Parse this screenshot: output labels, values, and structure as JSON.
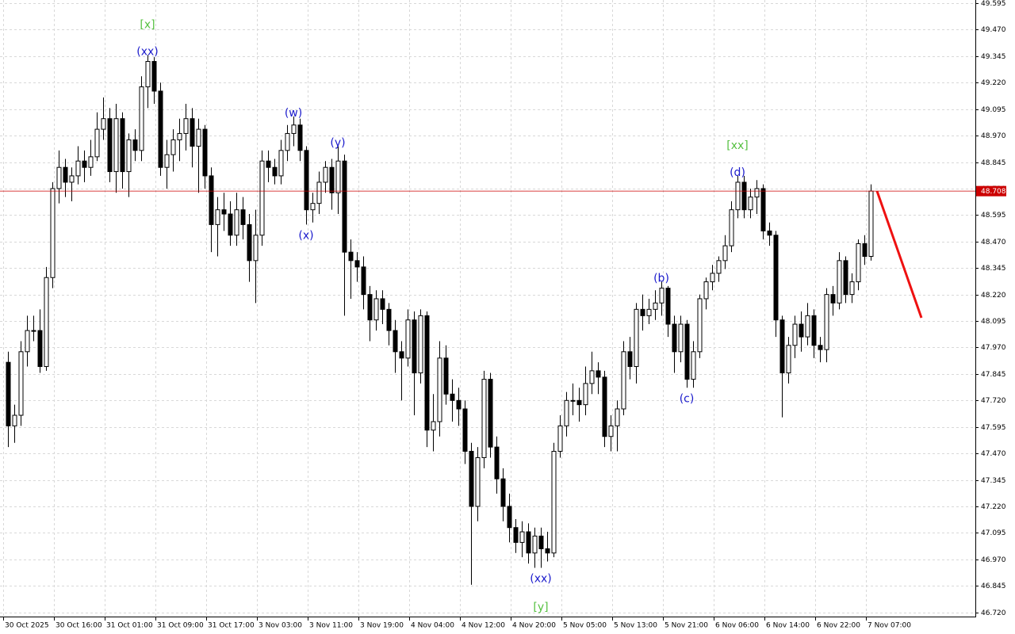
{
  "chart_data": {
    "type": "candlestick",
    "categories": [
      "30 Oct 2025",
      "30 Oct 16:00",
      "31 Oct 01:00",
      "31 Oct 09:00",
      "31 Oct 17:00",
      "3 Nov 03:00",
      "3 Nov 11:00",
      "3 Nov 19:00",
      "4 Nov 04:00",
      "4 Nov 12:00",
      "4 Nov 20:00",
      "5 Nov 05:00",
      "5 Nov 13:00",
      "5 Nov 21:00",
      "6 Nov 06:00",
      "6 Nov 14:00",
      "6 Nov 22:00",
      "7 Nov 07:00"
    ],
    "ohlc": [
      [
        47.9,
        47.95,
        47.5,
        47.6
      ],
      [
        47.6,
        47.7,
        47.52,
        47.65
      ],
      [
        47.65,
        48.0,
        47.6,
        47.95
      ],
      [
        47.95,
        48.12,
        47.88,
        48.05
      ],
      [
        48.05,
        48.12,
        48.0,
        48.05
      ],
      [
        48.05,
        48.15,
        47.85,
        47.88
      ],
      [
        47.88,
        48.35,
        47.86,
        48.3
      ],
      [
        48.3,
        48.75,
        48.25,
        48.72
      ],
      [
        48.72,
        48.9,
        48.65,
        48.82
      ],
      [
        48.82,
        48.86,
        48.68,
        48.75
      ],
      [
        48.75,
        48.82,
        48.66,
        48.78
      ],
      [
        48.78,
        48.92,
        48.74,
        48.85
      ],
      [
        48.85,
        48.9,
        48.75,
        48.82
      ],
      [
        48.82,
        48.95,
        48.78,
        48.87
      ],
      [
        48.87,
        49.08,
        48.85,
        49.0
      ],
      [
        49.0,
        49.15,
        48.95,
        49.05
      ],
      [
        49.05,
        49.1,
        48.75,
        48.8
      ],
      [
        48.8,
        49.12,
        48.7,
        49.05
      ],
      [
        49.05,
        49.08,
        48.72,
        48.8
      ],
      [
        48.8,
        48.98,
        48.68,
        48.95
      ],
      [
        48.95,
        49.0,
        48.85,
        48.9
      ],
      [
        48.9,
        49.25,
        48.85,
        49.2
      ],
      [
        49.2,
        49.35,
        49.1,
        49.32
      ],
      [
        49.32,
        49.34,
        49.12,
        49.18
      ],
      [
        49.18,
        49.22,
        48.78,
        48.82
      ],
      [
        48.82,
        48.95,
        48.72,
        48.88
      ],
      [
        48.88,
        49.0,
        48.8,
        48.95
      ],
      [
        48.95,
        49.05,
        48.85,
        48.98
      ],
      [
        48.98,
        49.12,
        48.9,
        49.05
      ],
      [
        49.05,
        49.1,
        48.82,
        48.92
      ],
      [
        48.92,
        49.05,
        48.7,
        49.0
      ],
      [
        49.0,
        49.02,
        48.72,
        48.78
      ],
      [
        48.78,
        48.82,
        48.42,
        48.55
      ],
      [
        48.55,
        48.68,
        48.4,
        48.62
      ],
      [
        48.62,
        48.7,
        48.52,
        48.6
      ],
      [
        48.6,
        48.66,
        48.45,
        48.5
      ],
      [
        48.5,
        48.7,
        48.45,
        48.62
      ],
      [
        48.62,
        48.68,
        48.48,
        48.55
      ],
      [
        48.55,
        48.6,
        48.28,
        48.38
      ],
      [
        48.38,
        48.62,
        48.18,
        48.5
      ],
      [
        48.5,
        48.9,
        48.45,
        48.85
      ],
      [
        48.85,
        48.9,
        48.75,
        48.82
      ],
      [
        48.82,
        48.86,
        48.74,
        48.78
      ],
      [
        48.78,
        48.95,
        48.74,
        48.9
      ],
      [
        48.9,
        49.02,
        48.85,
        48.98
      ],
      [
        48.98,
        49.06,
        48.92,
        49.02
      ],
      [
        49.02,
        49.05,
        48.85,
        48.9
      ],
      [
        48.9,
        48.92,
        48.55,
        48.62
      ],
      [
        48.62,
        48.7,
        48.56,
        48.65
      ],
      [
        48.65,
        48.8,
        48.6,
        48.75
      ],
      [
        48.75,
        48.85,
        48.7,
        48.82
      ],
      [
        48.82,
        48.86,
        48.62,
        48.7
      ],
      [
        48.7,
        48.92,
        48.6,
        48.85
      ],
      [
        48.85,
        48.88,
        48.12,
        48.42
      ],
      [
        48.42,
        48.48,
        48.2,
        48.38
      ],
      [
        48.38,
        48.42,
        48.28,
        48.35
      ],
      [
        48.35,
        48.4,
        48.15,
        48.22
      ],
      [
        48.22,
        48.26,
        48.0,
        48.1
      ],
      [
        48.1,
        48.24,
        48.05,
        48.2
      ],
      [
        48.2,
        48.24,
        48.08,
        48.15
      ],
      [
        48.15,
        48.18,
        47.98,
        48.05
      ],
      [
        48.05,
        48.1,
        47.85,
        47.95
      ],
      [
        47.95,
        48.0,
        47.72,
        47.92
      ],
      [
        47.92,
        48.15,
        47.88,
        48.1
      ],
      [
        48.1,
        48.14,
        47.65,
        47.85
      ],
      [
        47.85,
        48.15,
        47.8,
        48.12
      ],
      [
        48.12,
        48.14,
        47.5,
        47.58
      ],
      [
        47.58,
        47.75,
        47.48,
        47.62
      ],
      [
        47.62,
        48.0,
        47.55,
        47.92
      ],
      [
        47.92,
        47.98,
        47.7,
        47.75
      ],
      [
        47.75,
        47.82,
        47.62,
        47.72
      ],
      [
        47.72,
        47.78,
        47.6,
        47.68
      ],
      [
        47.68,
        47.72,
        47.42,
        47.48
      ],
      [
        47.48,
        47.52,
        46.85,
        47.22
      ],
      [
        47.22,
        47.5,
        47.15,
        47.45
      ],
      [
        47.45,
        47.86,
        47.4,
        47.82
      ],
      [
        47.82,
        47.85,
        47.45,
        47.5
      ],
      [
        47.5,
        47.55,
        47.28,
        47.35
      ],
      [
        47.35,
        47.4,
        47.15,
        47.22
      ],
      [
        47.22,
        47.28,
        47.05,
        47.12
      ],
      [
        47.12,
        47.16,
        47.0,
        47.05
      ],
      [
        47.05,
        47.15,
        46.98,
        47.1
      ],
      [
        47.1,
        47.14,
        46.95,
        47.0
      ],
      [
        47.0,
        47.12,
        46.93,
        47.08
      ],
      [
        47.08,
        47.12,
        46.93,
        47.02
      ],
      [
        47.02,
        47.1,
        46.96,
        47.0
      ],
      [
        47.0,
        47.52,
        46.98,
        47.48
      ],
      [
        47.48,
        47.65,
        47.45,
        47.6
      ],
      [
        47.6,
        47.76,
        47.55,
        47.72
      ],
      [
        47.72,
        47.8,
        47.65,
        47.72
      ],
      [
        47.72,
        47.78,
        47.62,
        47.7
      ],
      [
        47.7,
        47.88,
        47.65,
        47.8
      ],
      [
        47.8,
        47.95,
        47.75,
        47.86
      ],
      [
        47.86,
        47.9,
        47.75,
        47.83
      ],
      [
        47.83,
        47.86,
        47.5,
        47.55
      ],
      [
        47.55,
        47.65,
        47.48,
        47.6
      ],
      [
        47.6,
        47.72,
        47.48,
        47.68
      ],
      [
        47.68,
        48.0,
        47.65,
        47.95
      ],
      [
        47.95,
        48.02,
        47.82,
        47.88
      ],
      [
        47.88,
        48.18,
        47.8,
        48.15
      ],
      [
        48.15,
        48.22,
        48.05,
        48.12
      ],
      [
        48.12,
        48.2,
        48.08,
        48.15
      ],
      [
        48.15,
        48.24,
        48.1,
        48.18
      ],
      [
        48.18,
        48.28,
        48.12,
        48.25
      ],
      [
        48.25,
        48.26,
        48.02,
        48.08
      ],
      [
        48.08,
        48.12,
        47.85,
        47.95
      ],
      [
        47.95,
        48.12,
        47.9,
        48.08
      ],
      [
        48.08,
        48.1,
        47.78,
        47.82
      ],
      [
        47.82,
        48.0,
        47.78,
        47.95
      ],
      [
        47.95,
        48.22,
        47.92,
        48.2
      ],
      [
        48.2,
        48.3,
        48.15,
        48.28
      ],
      [
        48.28,
        48.36,
        48.24,
        48.32
      ],
      [
        48.32,
        48.4,
        48.28,
        48.38
      ],
      [
        48.38,
        48.5,
        48.34,
        48.45
      ],
      [
        48.45,
        48.66,
        48.42,
        48.62
      ],
      [
        48.62,
        48.78,
        48.58,
        48.75
      ],
      [
        48.75,
        48.78,
        48.58,
        48.62
      ],
      [
        48.62,
        48.72,
        48.58,
        48.68
      ],
      [
        48.68,
        48.76,
        48.6,
        48.72
      ],
      [
        48.72,
        48.74,
        48.48,
        48.52
      ],
      [
        48.52,
        48.56,
        48.45,
        48.5
      ],
      [
        48.5,
        48.52,
        48.02,
        48.1
      ],
      [
        48.1,
        48.12,
        47.64,
        47.85
      ],
      [
        47.85,
        48.02,
        47.8,
        47.98
      ],
      [
        47.98,
        48.12,
        47.92,
        48.08
      ],
      [
        48.08,
        48.14,
        47.95,
        48.02
      ],
      [
        48.02,
        48.18,
        47.98,
        48.12
      ],
      [
        48.12,
        48.15,
        47.92,
        47.98
      ],
      [
        47.98,
        48.02,
        47.9,
        47.96
      ],
      [
        47.96,
        48.25,
        47.9,
        48.22
      ],
      [
        48.22,
        48.26,
        48.12,
        48.18
      ],
      [
        48.18,
        48.42,
        48.15,
        48.38
      ],
      [
        48.38,
        48.4,
        48.18,
        48.22
      ],
      [
        48.22,
        48.32,
        48.18,
        48.28
      ],
      [
        48.28,
        48.48,
        48.24,
        48.46
      ],
      [
        48.46,
        48.5,
        48.36,
        48.4
      ],
      [
        48.4,
        48.74,
        48.38,
        48.708
      ]
    ],
    "ylim": [
      46.7,
      49.61
    ],
    "yticks": [
      49.595,
      {
        "value": 49.47,
        "label": "49.470"
      },
      49.345,
      {
        "value": 49.22,
        "label": "49.220"
      },
      49.095,
      {
        "value": 48.97,
        "label": "48.970"
      },
      48.845,
      {
        "value": 48.72,
        "label": "48.720"
      },
      48.595,
      {
        "value": 48.47,
        "label": "48.470"
      },
      48.345,
      {
        "value": 48.22,
        "label": "48.220"
      },
      48.095,
      {
        "value": 47.97,
        "label": "47.970"
      },
      47.845,
      {
        "value": 47.72,
        "label": "47.720"
      },
      47.595,
      {
        "value": 47.47,
        "label": "47.470"
      },
      47.345,
      {
        "value": 47.22,
        "label": "47.220"
      },
      47.095,
      {
        "value": 46.97,
        "label": "46.970"
      },
      46.845,
      {
        "value": 46.72,
        "label": "46.720"
      }
    ],
    "grid": true,
    "last_price": 48.708,
    "last_price_color": "#cc0000",
    "forecast": {
      "x": [
        137,
        144
      ],
      "values": [
        48.708,
        48.11
      ],
      "color": "#ee1111"
    },
    "up_color": "#ffffff",
    "down_color": "#000000",
    "annotations": [
      {
        "text": "(xx)",
        "candle": 22,
        "side": "above",
        "color": "#1a1acc"
      },
      {
        "text": "[x]",
        "candle": 22,
        "side": "above",
        "color": "#55c040"
      },
      {
        "text": "(w)",
        "candle": 45,
        "side": "above",
        "color": "#1a1acc"
      },
      {
        "text": "(x)",
        "candle": 47,
        "side": "below",
        "color": "#1a1acc"
      },
      {
        "text": "(y)",
        "candle": 52,
        "side": "above",
        "color": "#1a1acc"
      },
      {
        "text": "(xx)",
        "candle": 84,
        "side": "below",
        "color": "#1a1acc"
      },
      {
        "text": "[y]",
        "candle": 84,
        "side": "below",
        "color": "#55c040"
      },
      {
        "text": "(b)",
        "candle": 103,
        "side": "above",
        "color": "#1a1acc"
      },
      {
        "text": "(c)",
        "candle": 107,
        "side": "below",
        "color": "#1a1acc"
      },
      {
        "text": "(d)",
        "candle": 115,
        "side": "above",
        "color": "#1a1acc"
      },
      {
        "text": "[xx]",
        "candle": 115,
        "side": "above",
        "color": "#55c040"
      }
    ]
  }
}
